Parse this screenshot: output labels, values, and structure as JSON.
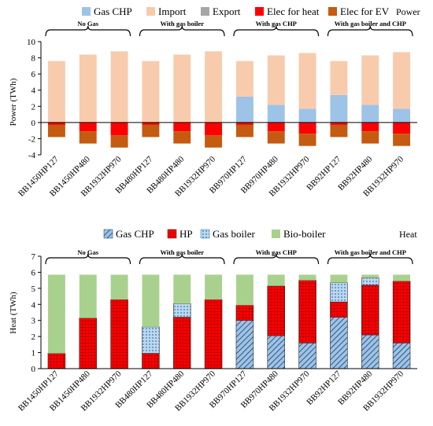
{
  "chart_data": [
    {
      "type": "bar",
      "stacked": true,
      "corner_label": "Power",
      "ylabel": "Power (TWh)",
      "ylim": [
        -4,
        10
      ],
      "yticks": [
        -4,
        -2,
        0,
        2,
        4,
        6,
        8,
        10
      ],
      "grid": false,
      "legend_position": "top",
      "categories": [
        "BB1450HP127",
        "BB1450HP480",
        "BB1932HP970",
        "BB480HP127",
        "BB480HP480",
        "BB1932HP970",
        "BB970HP127",
        "BB970HP480",
        "BB1932HP970",
        "BB92HP127",
        "BB92HP480",
        "BB1932HP970"
      ],
      "groups": [
        {
          "label": "No Gas",
          "start": 0,
          "end": 2
        },
        {
          "label": "With gas boiler",
          "start": 3,
          "end": 5
        },
        {
          "label": "With gas CHP",
          "start": 6,
          "end": 8
        },
        {
          "label": "With gas boiler and CHP",
          "start": 9,
          "end": 11
        }
      ],
      "series": [
        {
          "name": "Gas CHP",
          "color": "#9dc3e6",
          "values": [
            0,
            0,
            0,
            0,
            0,
            0,
            3.2,
            2.2,
            1.7,
            3.4,
            2.2,
            1.7
          ]
        },
        {
          "name": "Import",
          "color": "#f8cbad",
          "values": [
            7.6,
            8.4,
            8.8,
            7.6,
            8.4,
            8.8,
            4.4,
            6.1,
            6.9,
            4.2,
            6.1,
            7.0
          ]
        },
        {
          "name": "Export",
          "color": "#a6a6a6",
          "values": [
            0,
            0,
            0,
            0,
            0,
            0,
            0,
            0,
            0,
            0,
            0,
            0
          ]
        },
        {
          "name": "Elec for heat",
          "color": "#ff0000",
          "values": [
            -0.3,
            -1.1,
            -1.6,
            -0.3,
            -1.1,
            -1.6,
            -0.3,
            -1.1,
            -1.4,
            -0.3,
            -1.1,
            -1.4
          ]
        },
        {
          "name": "Elec for EV",
          "color": "#c55a11",
          "values": [
            -1.5,
            -1.5,
            -1.5,
            -1.5,
            -1.5,
            -1.5,
            -1.5,
            -1.5,
            -1.5,
            -1.5,
            -1.5,
            -1.5
          ]
        }
      ]
    },
    {
      "type": "bar",
      "stacked": true,
      "corner_label": "Heat",
      "ylabel": "Heat (TWh)",
      "ylim": [
        0,
        7
      ],
      "yticks": [
        0,
        1,
        2,
        3,
        4,
        5,
        6,
        7
      ],
      "grid": false,
      "legend_position": "top",
      "categories": [
        "BB1450HP127",
        "BB1450HP480",
        "BB1932HP970",
        "BB480HP127",
        "BB480HP480",
        "BB1932HP970",
        "BB970HP127",
        "BB970HP480",
        "BB1932HP970",
        "BB92HP127",
        "BB92HP480",
        "BB1932HP970"
      ],
      "groups": [
        {
          "label": "No Gas",
          "start": 0,
          "end": 2
        },
        {
          "label": "With gas boiler",
          "start": 3,
          "end": 5
        },
        {
          "label": "With gas CHP",
          "start": 6,
          "end": 8
        },
        {
          "label": "With gas boiler and CHP",
          "start": 9,
          "end": 11
        }
      ],
      "series": [
        {
          "name": "Gas CHP",
          "color": "#9dc3e6",
          "pattern": "diagonal",
          "values": [
            0,
            0,
            0,
            0,
            0,
            0,
            3.0,
            2.05,
            1.6,
            3.2,
            2.1,
            1.6
          ]
        },
        {
          "name": "HP",
          "color": "#ff0000",
          "pattern": "grid",
          "values": [
            0.95,
            3.15,
            4.3,
            0.95,
            3.2,
            4.3,
            0.95,
            3.1,
            3.9,
            0.95,
            3.1,
            3.85
          ]
        },
        {
          "name": "Gas boiler",
          "color": "#9dc3e6",
          "pattern": "dots",
          "values": [
            0,
            0,
            0,
            1.65,
            0.85,
            0,
            0,
            0,
            0,
            1.2,
            0.45,
            0
          ]
        },
        {
          "name": "Bio-boiler",
          "color": "#a9d18e",
          "values": [
            4.9,
            2.7,
            1.55,
            3.25,
            1.8,
            1.55,
            1.9,
            0.7,
            0.35,
            0.5,
            0.2,
            0.4
          ]
        }
      ]
    }
  ]
}
